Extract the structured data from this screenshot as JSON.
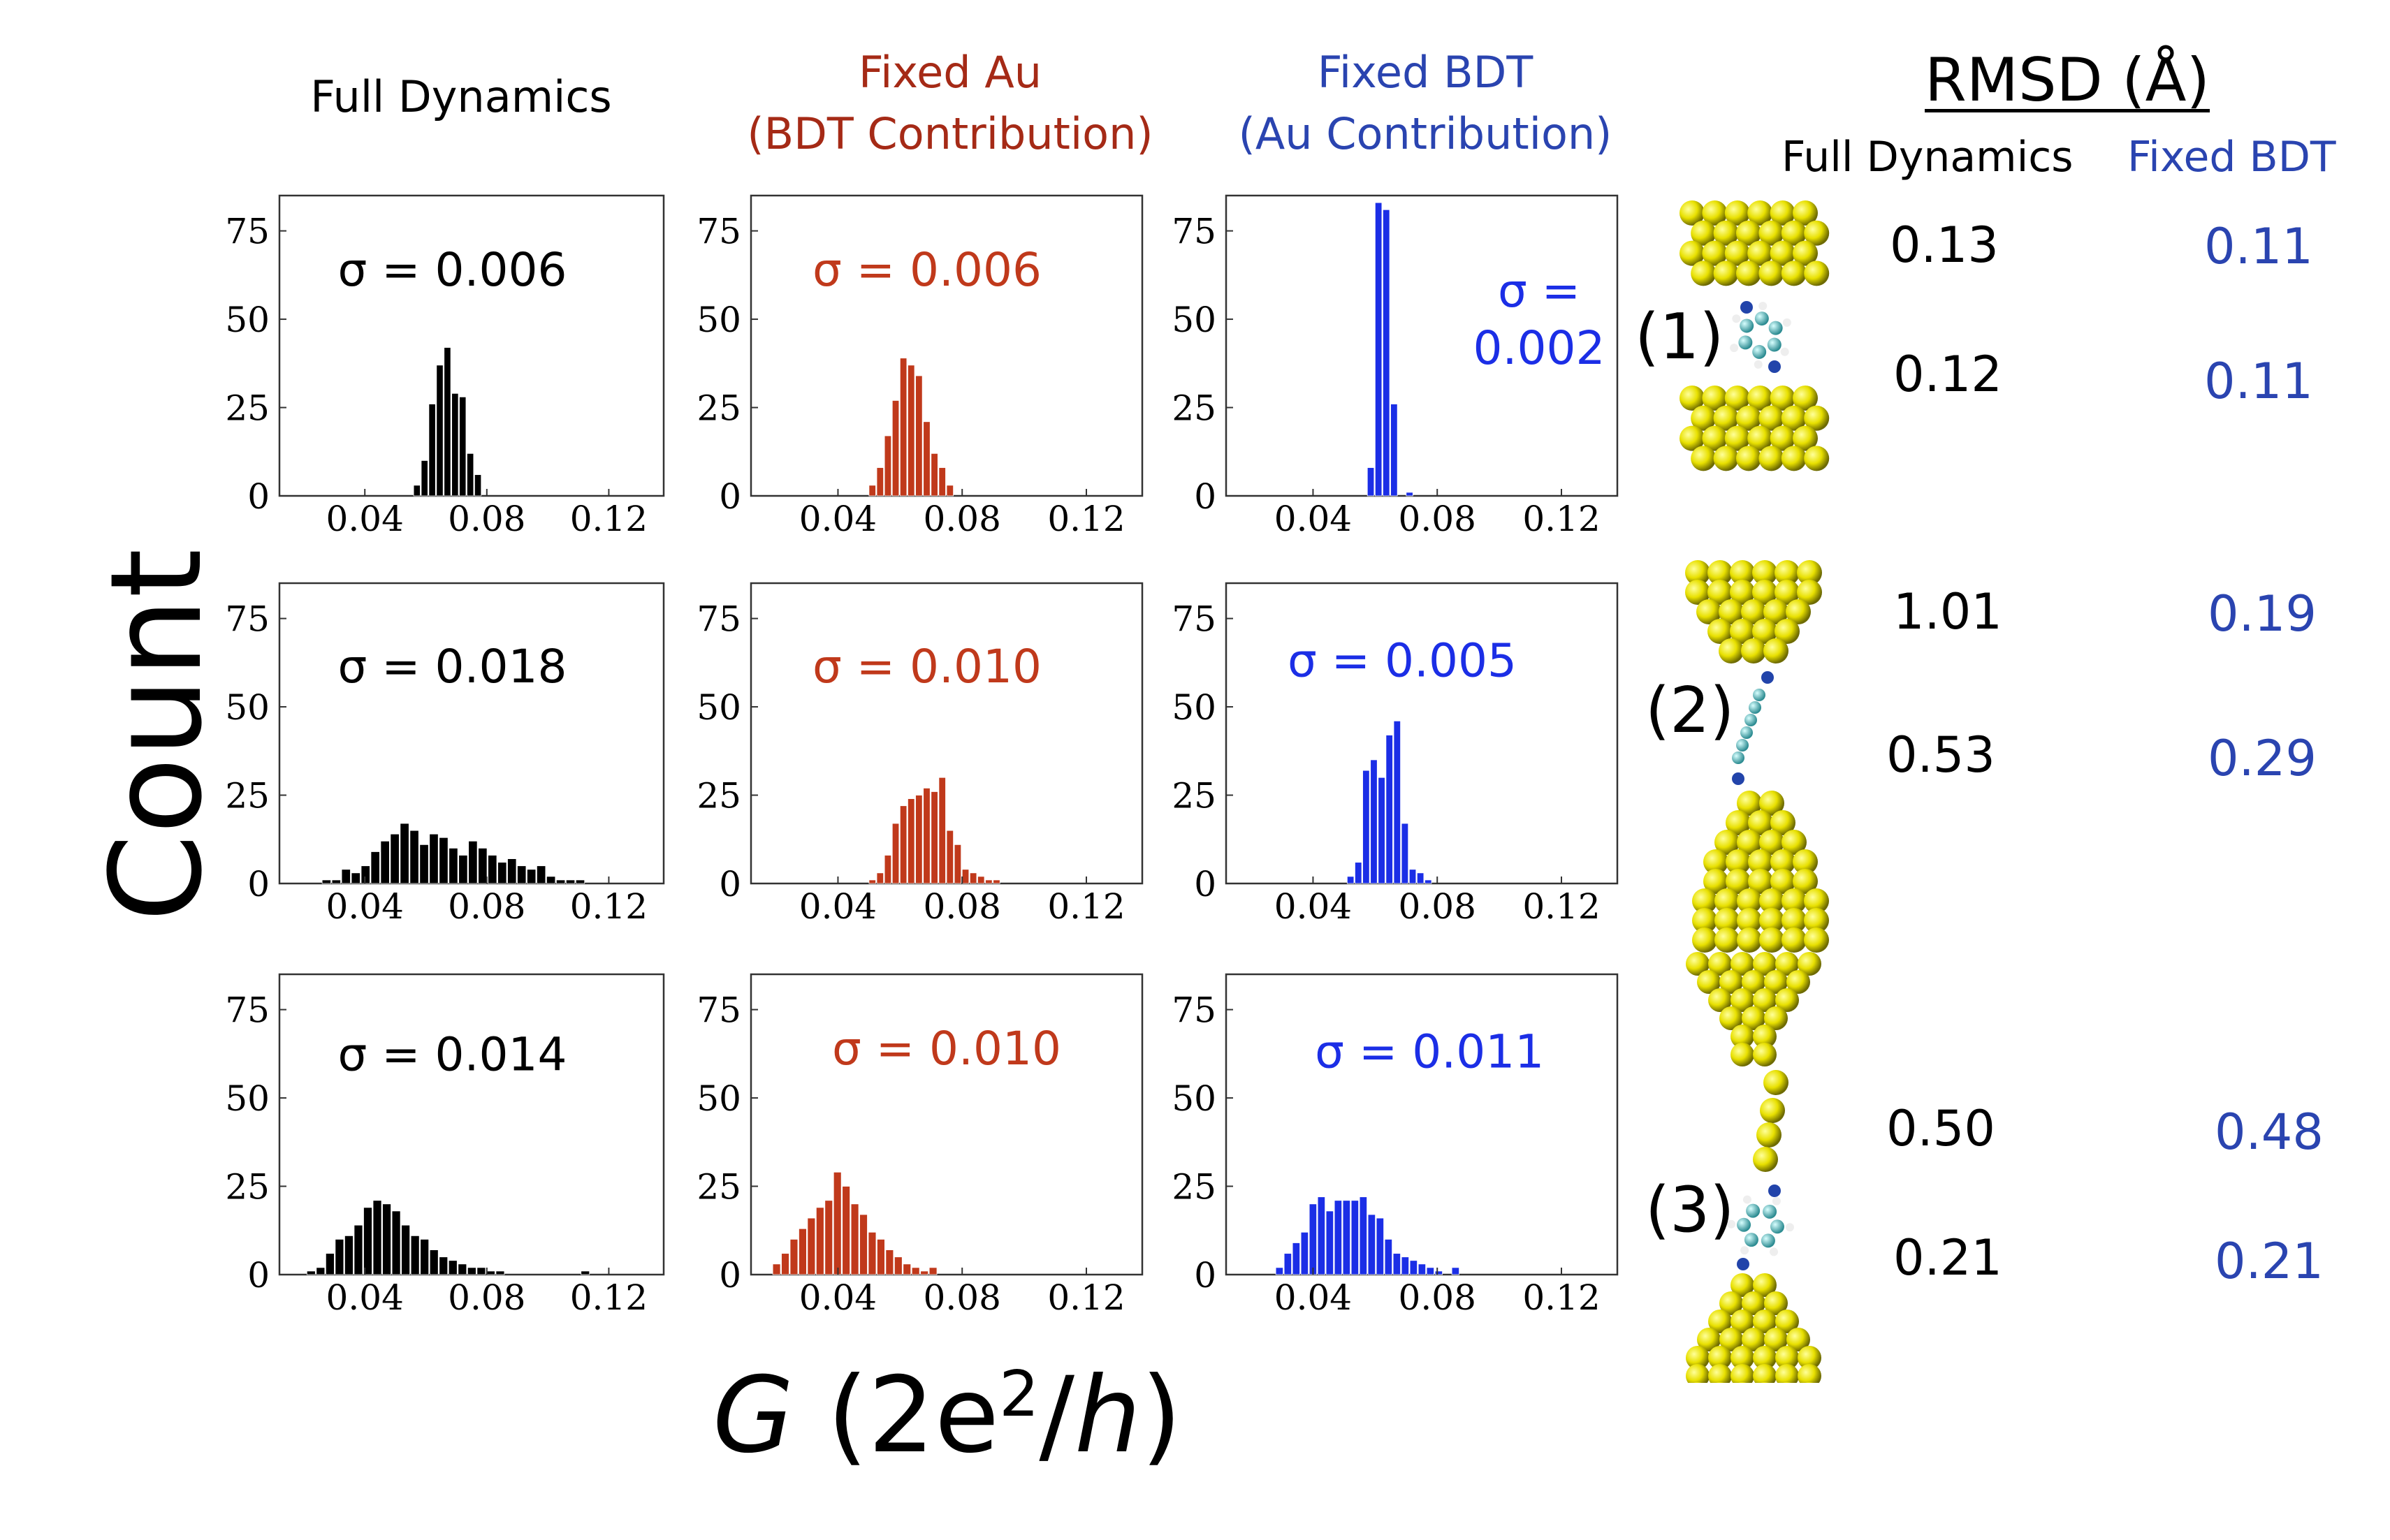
{
  "headers": {
    "full": "Full Dynamics",
    "au_line1": "Fixed Au",
    "au_line2": "(BDT Contribution)",
    "bdt_line1": "Fixed BDT",
    "bdt_line2": "(Au Contribution)"
  },
  "axis": {
    "y": "Count",
    "x_italic_G": "G",
    "x_paren_open": " (2e",
    "x_sup": "2",
    "x_slash": "/",
    "x_italic_h": "h",
    "x_paren_close": ")"
  },
  "rmsd": {
    "title": "RMSD (Å)",
    "col_full": "Full Dynamics",
    "col_fixed": "Fixed BDT",
    "rows": [
      {
        "label": "(1)",
        "full": [
          "0.13",
          "0.12"
        ],
        "fixed": [
          "0.11",
          "0.11"
        ]
      },
      {
        "label": "(2)",
        "full": [
          "1.01",
          "0.53"
        ],
        "fixed": [
          "0.19",
          "0.29"
        ]
      },
      {
        "label": "(3)",
        "full": [
          "0.50",
          "0.21"
        ],
        "fixed": [
          "0.48",
          "0.21"
        ]
      }
    ]
  },
  "colors": {
    "full": "#000000",
    "au": "#c0391b",
    "bdt": "#1b2ee6",
    "rmsd_fixed": "#2a44b0",
    "au_header": "#a52a16",
    "bdt_header": "#2a44b0"
  },
  "chart_data": [
    {
      "type": "bar",
      "id": "r1-full",
      "color": "full",
      "sigma": "σ = 0.006",
      "x_start": 0.056,
      "bin_width": 0.0025,
      "values": [
        3,
        10,
        26,
        37,
        42,
        29,
        28,
        12,
        6
      ],
      "xlim": [
        0.012,
        0.138
      ],
      "ylim": [
        0,
        85
      ],
      "xticks": [
        "0.04",
        "0.08",
        "0.12"
      ],
      "yticks": [
        "0",
        "25",
        "50",
        "75"
      ]
    },
    {
      "type": "bar",
      "id": "r1-au",
      "color": "au",
      "sigma": "σ = 0.006",
      "x_start": 0.05,
      "bin_width": 0.0025,
      "values": [
        3,
        8,
        17,
        27,
        39,
        37,
        34,
        21,
        12,
        8,
        3
      ],
      "xlim": [
        0.012,
        0.138
      ],
      "ylim": [
        0,
        85
      ],
      "xticks": [
        "0.04",
        "0.08",
        "0.12"
      ],
      "yticks": [
        "0",
        "25",
        "50",
        "75"
      ]
    },
    {
      "type": "bar",
      "id": "r1-bdt",
      "color": "bdt",
      "sigma_line1": "σ =",
      "sigma_line2": "0.002",
      "x_start": 0.0575,
      "bin_width": 0.0025,
      "values": [
        8,
        83,
        81,
        26,
        0,
        1
      ],
      "xlim": [
        0.012,
        0.138
      ],
      "ylim": [
        0,
        85
      ],
      "xticks": [
        "0.04",
        "0.08",
        "0.12"
      ],
      "yticks": [
        "0",
        "25",
        "50",
        "75"
      ]
    },
    {
      "type": "bar",
      "id": "r2-full",
      "color": "full",
      "sigma": "σ = 0.018",
      "x_start": 0.026,
      "bin_width": 0.0032,
      "values": [
        1,
        1,
        4,
        3,
        5,
        9,
        12,
        14,
        17,
        15,
        11,
        14,
        13,
        10,
        8,
        12,
        10,
        8,
        6,
        7,
        5,
        4,
        5,
        2,
        1,
        1,
        1
      ],
      "xlim": [
        0.012,
        0.138
      ],
      "ylim": [
        0,
        85
      ],
      "xticks": [
        "0.04",
        "0.08",
        "0.12"
      ],
      "yticks": [
        "0",
        "25",
        "50",
        "75"
      ]
    },
    {
      "type": "bar",
      "id": "r2-au",
      "color": "au",
      "sigma": "σ = 0.010",
      "x_start": 0.05,
      "bin_width": 0.0025,
      "values": [
        1,
        3,
        8,
        17,
        22,
        24,
        25,
        27,
        26,
        30,
        15,
        11,
        4,
        3,
        2,
        1,
        1
      ],
      "xlim": [
        0.012,
        0.138
      ],
      "ylim": [
        0,
        85
      ],
      "xticks": [
        "0.04",
        "0.08",
        "0.12"
      ],
      "yticks": [
        "0",
        "25",
        "50",
        "75"
      ]
    },
    {
      "type": "bar",
      "id": "r2-bdt",
      "color": "bdt",
      "sigma": "σ = 0.005",
      "x_start": 0.051,
      "bin_width": 0.0025,
      "values": [
        2,
        6,
        32,
        35,
        30,
        42,
        46,
        17,
        4,
        3,
        1
      ],
      "xlim": [
        0.012,
        0.138
      ],
      "ylim": [
        0,
        85
      ],
      "xticks": [
        "0.04",
        "0.08",
        "0.12"
      ],
      "yticks": [
        "0",
        "25",
        "50",
        "75"
      ]
    },
    {
      "type": "bar",
      "id": "r3-full",
      "color": "full",
      "sigma": "σ = 0.014",
      "x_start": 0.021,
      "bin_width": 0.0031,
      "values": [
        1,
        2,
        6,
        10,
        11,
        14,
        19,
        21,
        20,
        18,
        14,
        11,
        10,
        7,
        5,
        4,
        3,
        2,
        2,
        1,
        1,
        0,
        0,
        0,
        0,
        0,
        0,
        0,
        0,
        1
      ],
      "xlim": [
        0.012,
        0.138
      ],
      "ylim": [
        0,
        85
      ],
      "xticks": [
        "0.04",
        "0.08",
        "0.12"
      ],
      "yticks": [
        "0",
        "25",
        "50",
        "75"
      ]
    },
    {
      "type": "bar",
      "id": "r3-au",
      "color": "au",
      "sigma": "σ = 0.010",
      "x_start": 0.019,
      "bin_width": 0.0028,
      "values": [
        3,
        6,
        10,
        13,
        16,
        19,
        21,
        29,
        25,
        20,
        17,
        12,
        10,
        7,
        5,
        3,
        2,
        1,
        2
      ],
      "xlim": [
        0.012,
        0.138
      ],
      "ylim": [
        0,
        85
      ],
      "xticks": [
        "0.04",
        "0.08",
        "0.12"
      ],
      "yticks": [
        "0",
        "25",
        "50",
        "75"
      ]
    },
    {
      "type": "bar",
      "id": "r3-bdt",
      "color": "bdt",
      "sigma": "σ = 0.011",
      "x_start": 0.028,
      "bin_width": 0.0027,
      "values": [
        2,
        6,
        9,
        12,
        20,
        22,
        18,
        21,
        21,
        21,
        22,
        17,
        16,
        10,
        6,
        5,
        4,
        3,
        2,
        1,
        0,
        2
      ],
      "xlim": [
        0.012,
        0.138
      ],
      "ylim": [
        0,
        85
      ],
      "xticks": [
        "0.04",
        "0.08",
        "0.12"
      ],
      "yticks": [
        "0",
        "25",
        "50",
        "75"
      ]
    }
  ]
}
